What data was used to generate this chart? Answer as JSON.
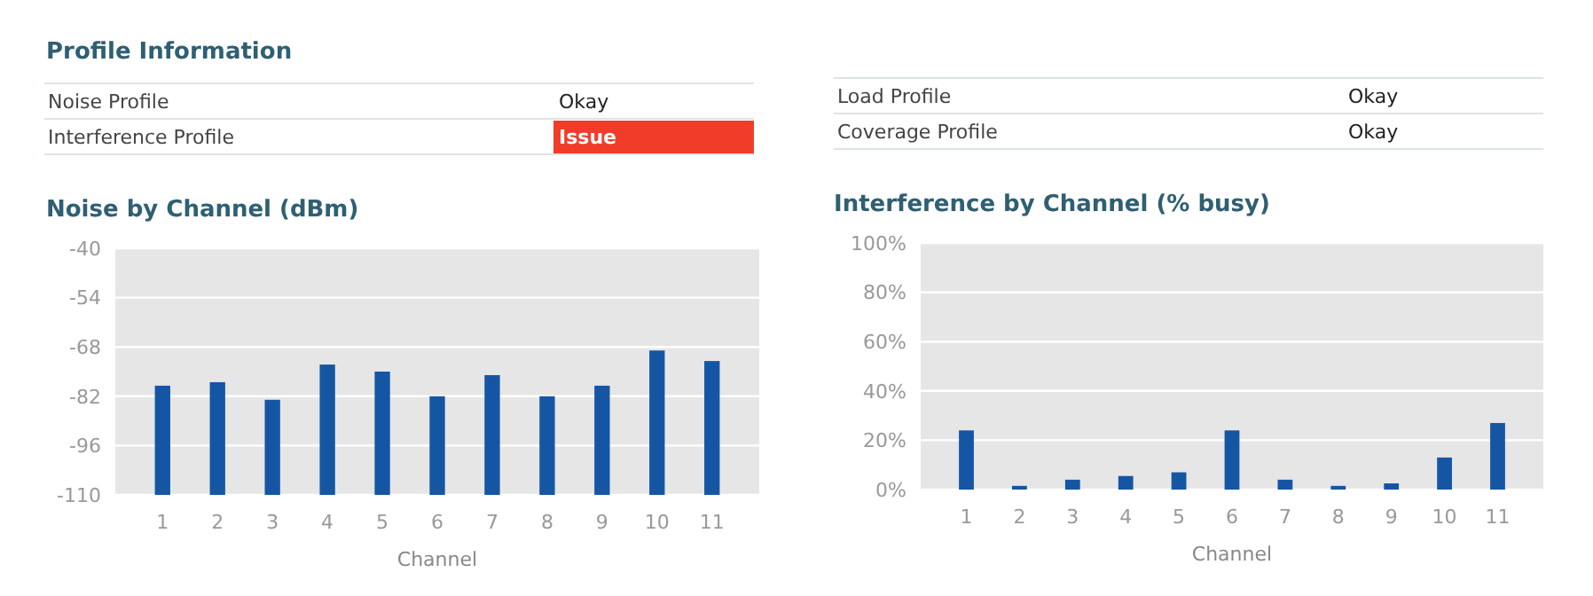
{
  "chart_data": [
    {
      "type": "other",
      "title": "Profile Information",
      "categories": [
        "Noise Profile",
        "Interference Profile",
        "Load Profile",
        "Coverage Profile"
      ],
      "value_labels": [
        "Okay",
        "Issue",
        "Okay",
        "Okay"
      ],
      "colors": [
        null,
        "#f13c2a",
        null,
        null
      ]
    },
    {
      "type": "bar",
      "title": "Noise by Channel (dBm)",
      "xlabel": "Channel",
      "categories": [
        "1",
        "2",
        "3",
        "4",
        "5",
        "6",
        "7",
        "8",
        "9",
        "10",
        "11"
      ],
      "values": [
        31,
        32,
        27,
        37,
        35,
        28,
        34,
        28,
        31,
        41,
        38
      ],
      "base": [
        -110,
        -110,
        -110,
        -110,
        -110,
        -110,
        -110,
        -110,
        -110,
        -110,
        -110
      ],
      "color": "#1556a4",
      "ylim": [
        -110,
        -40
      ],
      "yticks": [
        -110,
        -96,
        -82,
        -68,
        -54,
        -40
      ],
      "grid": "y"
    },
    {
      "type": "bar",
      "title": "Interference by Channel (% busy)",
      "xlabel": "Channel",
      "categories": [
        "1",
        "2",
        "3",
        "4",
        "5",
        "6",
        "7",
        "8",
        "9",
        "10",
        "11"
      ],
      "values": [
        24,
        1.5,
        4,
        5.5,
        7,
        24,
        4,
        1.5,
        2.5,
        13,
        27
      ],
      "color": "#1556a4",
      "ylim": [
        0,
        100
      ],
      "yticks": [
        {
          "value": 0,
          "label": "0%"
        },
        {
          "value": 20,
          "label": "20%"
        },
        {
          "value": 40,
          "label": "40%"
        },
        {
          "value": 60,
          "label": "60%"
        },
        {
          "value": 80,
          "label": "80%"
        },
        {
          "value": 100,
          "label": "100%"
        }
      ],
      "grid": "y"
    }
  ]
}
